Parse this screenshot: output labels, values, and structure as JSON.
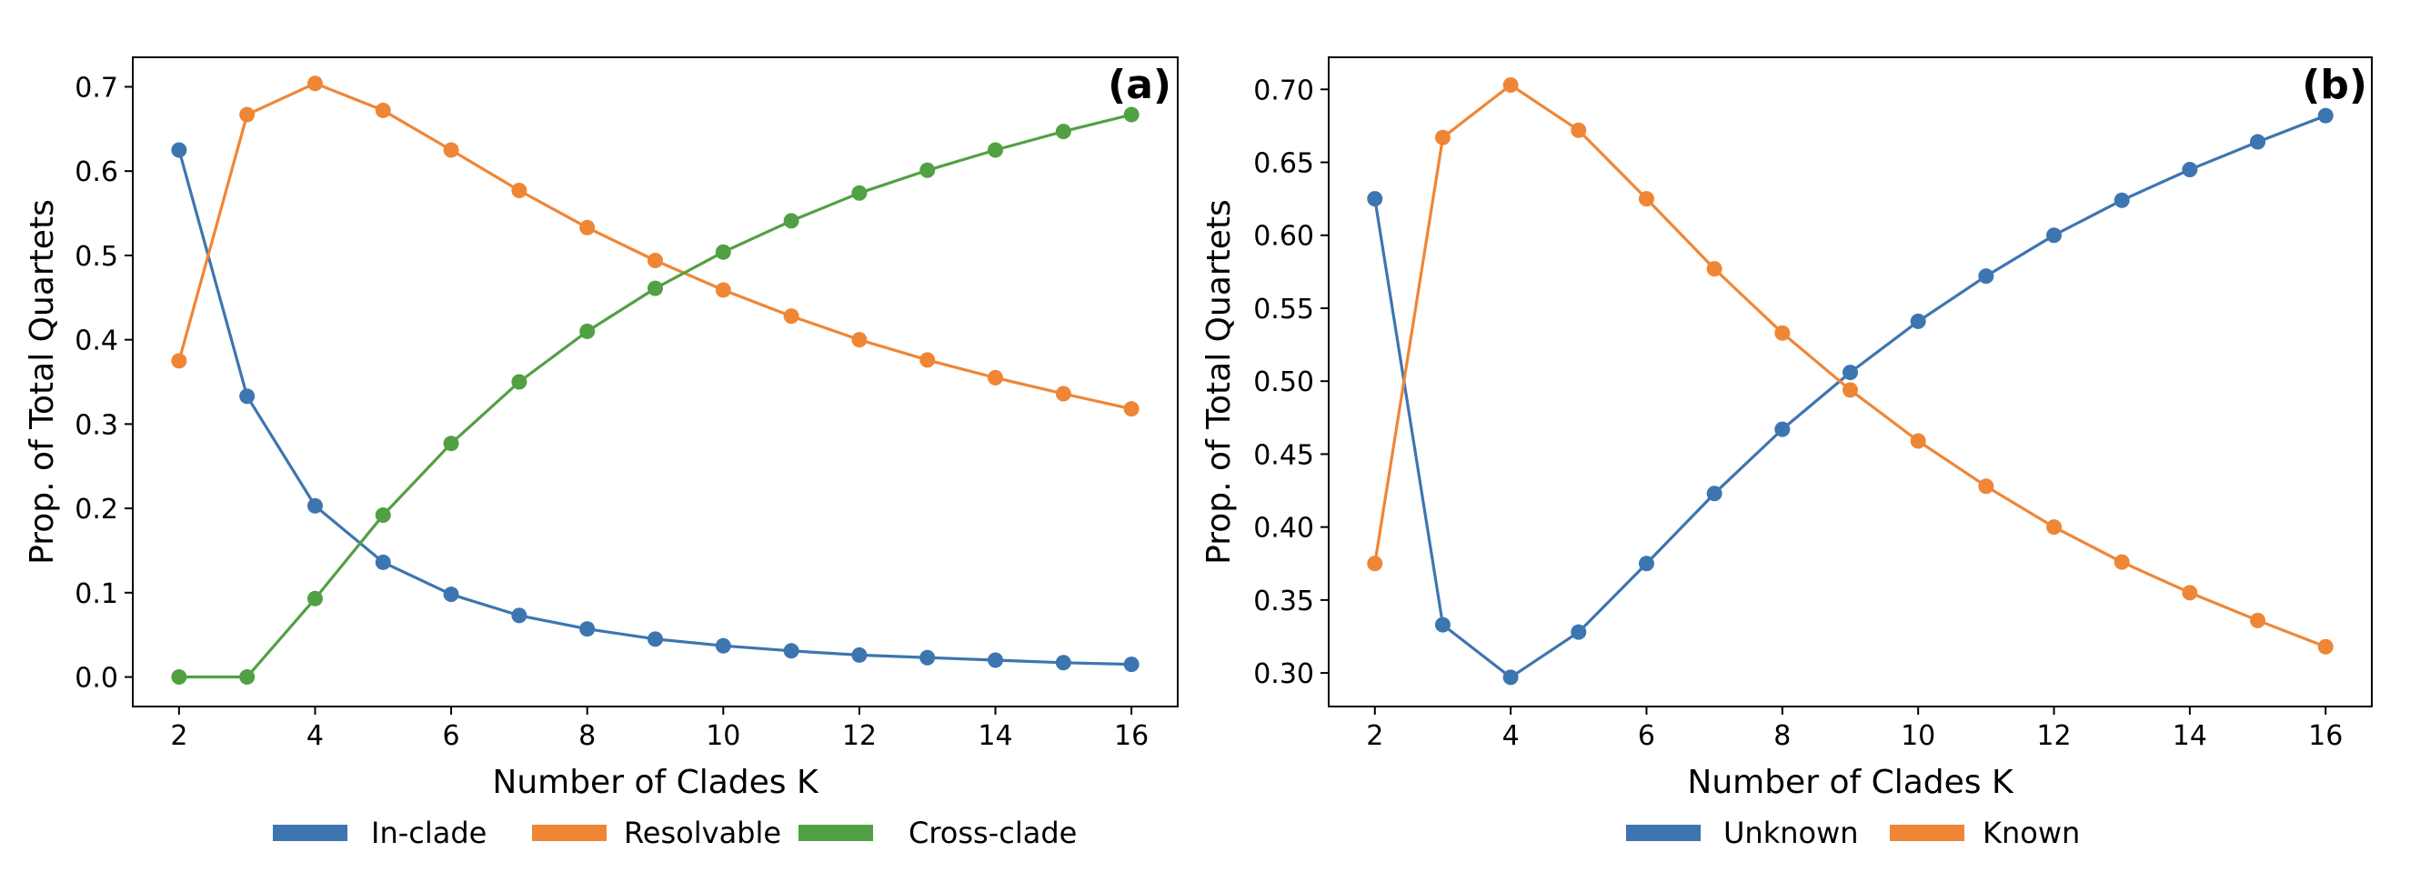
{
  "chart_data": [
    {
      "type": "line",
      "panel_label": "(a)",
      "xlabel": "Number of Clades K",
      "ylabel": "Prop. of Total Quartets",
      "x": [
        2,
        3,
        4,
        5,
        6,
        7,
        8,
        9,
        10,
        11,
        12,
        13,
        14,
        15,
        16
      ],
      "xlim": [
        1.32,
        16.68
      ],
      "ylim": [
        -0.035,
        0.735
      ],
      "xticks": [
        2,
        4,
        6,
        8,
        10,
        12,
        14,
        16
      ],
      "yticks": [
        0.0,
        0.1,
        0.2,
        0.3,
        0.4,
        0.5,
        0.6,
        0.7
      ],
      "ytick_labels": [
        "0.0",
        "0.1",
        "0.2",
        "0.3",
        "0.4",
        "0.5",
        "0.6",
        "0.7"
      ],
      "legend_position": "bottom-center",
      "series": [
        {
          "name": "In-clade",
          "color": "#3d75b0",
          "values": [
            0.625,
            0.333,
            0.203,
            0.136,
            0.098,
            0.073,
            0.057,
            0.045,
            0.037,
            0.031,
            0.026,
            0.023,
            0.02,
            0.017,
            0.015
          ]
        },
        {
          "name": "Resolvable",
          "color": "#ef8636",
          "values": [
            0.375,
            0.667,
            0.704,
            0.672,
            0.625,
            0.577,
            0.533,
            0.494,
            0.459,
            0.428,
            0.4,
            0.376,
            0.355,
            0.336,
            0.318
          ]
        },
        {
          "name": "Cross-clade",
          "color": "#52a044",
          "values": [
            0.0,
            0.0,
            0.093,
            0.192,
            0.277,
            0.35,
            0.41,
            0.461,
            0.504,
            0.541,
            0.574,
            0.601,
            0.625,
            0.647,
            0.667
          ]
        }
      ]
    },
    {
      "type": "line",
      "panel_label": "(b)",
      "xlabel": "Number of Clades K",
      "ylabel": "Prop. of Total Quartets",
      "x": [
        2,
        3,
        4,
        5,
        6,
        7,
        8,
        9,
        10,
        11,
        12,
        13,
        14,
        15,
        16
      ],
      "xlim": [
        1.32,
        16.68
      ],
      "ylim": [
        0.277,
        0.722
      ],
      "xticks": [
        2,
        4,
        6,
        8,
        10,
        12,
        14,
        16
      ],
      "yticks": [
        0.3,
        0.35,
        0.4,
        0.45,
        0.5,
        0.55,
        0.6,
        0.65,
        0.7
      ],
      "ytick_labels": [
        "0.30",
        "0.35",
        "0.40",
        "0.45",
        "0.50",
        "0.55",
        "0.60",
        "0.65",
        "0.70"
      ],
      "legend_position": "bottom-center",
      "series": [
        {
          "name": "Unknown",
          "color": "#3d75b0",
          "values": [
            0.625,
            0.333,
            0.297,
            0.328,
            0.375,
            0.423,
            0.467,
            0.506,
            0.541,
            0.572,
            0.6,
            0.624,
            0.645,
            0.664,
            0.682
          ]
        },
        {
          "name": "Known",
          "color": "#ef8636",
          "values": [
            0.375,
            0.667,
            0.703,
            0.672,
            0.625,
            0.577,
            0.533,
            0.494,
            0.459,
            0.428,
            0.4,
            0.376,
            0.355,
            0.336,
            0.318
          ]
        }
      ]
    }
  ]
}
